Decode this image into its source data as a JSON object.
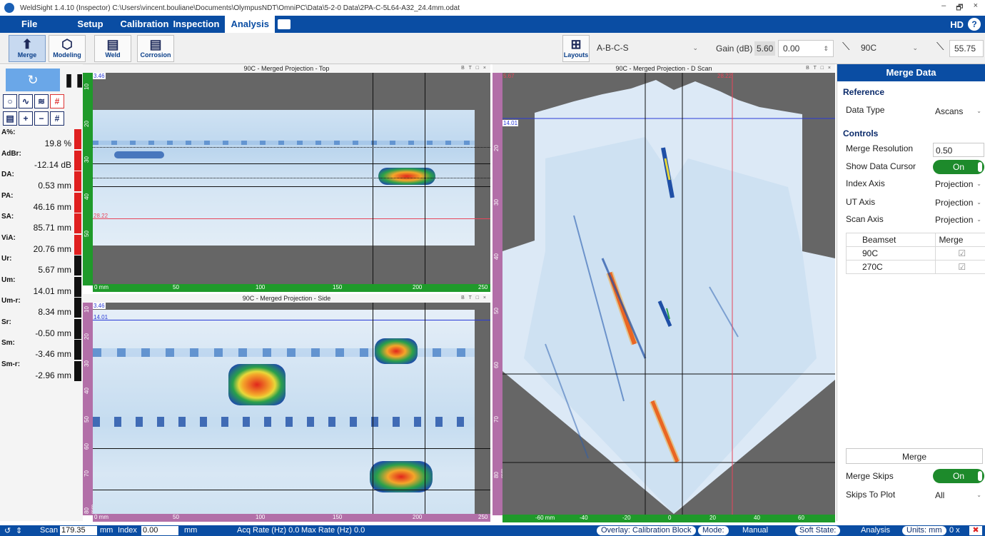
{
  "window": {
    "title": "WeldSight 1.4.10 (Inspector) C:\\Users\\vincent.bouliane\\Documents\\OlympusNDT\\OmniPC\\Data\\5-2-0 Data\\2PA-C-5L64-A32_24.4mm.odat",
    "min": "–",
    "max": "🗗",
    "close": "×"
  },
  "menu": {
    "items": [
      "File",
      "Setup",
      "Calibration",
      "Inspection",
      "Analysis"
    ],
    "hd": "HD",
    "help": "?"
  },
  "toolbar": {
    "buttons": [
      "Merge",
      "Modeling",
      "Weld",
      "Corrosion"
    ],
    "layouts": "Layouts",
    "layout_value": "A-B-C-S",
    "gain_label": "Gain (dB)",
    "gain_ref": "5.60",
    "gain_value": "0.00",
    "beam_value": "90C",
    "angle_value": "55.75"
  },
  "measurements": [
    {
      "key": "A%:",
      "value": "19.8 %",
      "color": "#e02020"
    },
    {
      "key": "AdBr:",
      "value": "-12.14 dB",
      "color": "#e02020"
    },
    {
      "key": "DA:",
      "value": "0.53 mm",
      "color": "#e02020"
    },
    {
      "key": "PA:",
      "value": "46.16 mm",
      "color": "#e02020"
    },
    {
      "key": "SA:",
      "value": "85.71 mm",
      "color": "#e02020"
    },
    {
      "key": "ViA:",
      "value": "20.76 mm",
      "color": "#e02020"
    },
    {
      "key": "Ur:",
      "value": "5.67 mm",
      "color": "#111111"
    },
    {
      "key": "Um:",
      "value": "14.01 mm",
      "color": "#111111"
    },
    {
      "key": "Um-r:",
      "value": "8.34 mm",
      "color": "#111111"
    },
    {
      "key": "Sr:",
      "value": "-0.50 mm",
      "color": "#111111"
    },
    {
      "key": "Sm:",
      "value": "-3.46 mm",
      "color": "#111111"
    },
    {
      "key": "Sm-r:",
      "value": "-2.96 mm",
      "color": "#111111"
    }
  ],
  "views": {
    "top": {
      "title": "90C - Merged Projection - Top",
      "cursor_top": "3.46",
      "cursor_ref": "28.22",
      "vticks": [
        "10",
        "20",
        "30",
        "40",
        "50"
      ],
      "hticks": [
        "0 mm",
        "50",
        "100",
        "150",
        "200",
        "250"
      ]
    },
    "side": {
      "title": "90C - Merged Projection - Side",
      "cursor_top": "3.46",
      "cursor_meas": "14.01",
      "vticks": [
        "10",
        "20",
        "30",
        "40",
        "50",
        "60",
        "70",
        "80 mm"
      ],
      "hticks": [
        "0 mm",
        "50",
        "100",
        "150",
        "200",
        "250"
      ]
    },
    "dscan": {
      "title": "90C - Merged Projection - D Scan",
      "cursor_ref": "5.67",
      "cursor_meas": "14.01",
      "cursor_x": "28.22",
      "vticks": [
        "20",
        "30",
        "40",
        "50",
        "60",
        "70",
        "80 mm"
      ],
      "hticks": [
        "-60 mm",
        "-40",
        "-20",
        "0",
        "20",
        "40",
        "60"
      ]
    },
    "panel_controls": "B T □ ×"
  },
  "merge_panel": {
    "title": "Merge Data",
    "reference": "Reference",
    "data_type_label": "Data Type",
    "data_type_value": "Ascans",
    "controls": "Controls",
    "merge_resolution_label": "Merge Resolution",
    "merge_resolution_value": "0.50",
    "show_cursor_label": "Show Data Cursor",
    "show_cursor_value": "On",
    "index_axis_label": "Index Axis",
    "index_axis_value": "Projection",
    "ut_axis_label": "UT Axis",
    "ut_axis_value": "Projection",
    "scan_axis_label": "Scan Axis",
    "scan_axis_value": "Projection",
    "beamset_header": "Beamset",
    "merge_header": "Merge",
    "beamsets": [
      {
        "name": "90C",
        "checked": "☑"
      },
      {
        "name": "270C",
        "checked": "☑"
      }
    ],
    "merge_button": "Merge",
    "merge_skips_label": "Merge Skips",
    "merge_skips_value": "On",
    "skips_to_plot_label": "Skips To Plot",
    "skips_to_plot_value": "All"
  },
  "status": {
    "scan_label": "Scan",
    "scan_value": "179.35",
    "scan_unit": "mm",
    "index_label": "Index",
    "index_value": "0.00",
    "index_unit": "mm",
    "acq_rate": "Acq Rate (Hz)  0.0",
    "max_rate": "Max Rate (Hz)  0.0",
    "overlay": "Overlay:  Calibration Block",
    "mode_label": "Mode:",
    "mode_value": "Manual",
    "soft_state_label": "Soft State:",
    "soft_state_value": "Analysis",
    "units": "Units: mm",
    "count": "0  x"
  },
  "colors": {
    "brand": "#0a4da3",
    "axis_green": "#1f9a2a",
    "axis_pink": "#b26fa8",
    "ref_cursor": "#e8465a",
    "meas_cursor": "#2a3bd6"
  }
}
